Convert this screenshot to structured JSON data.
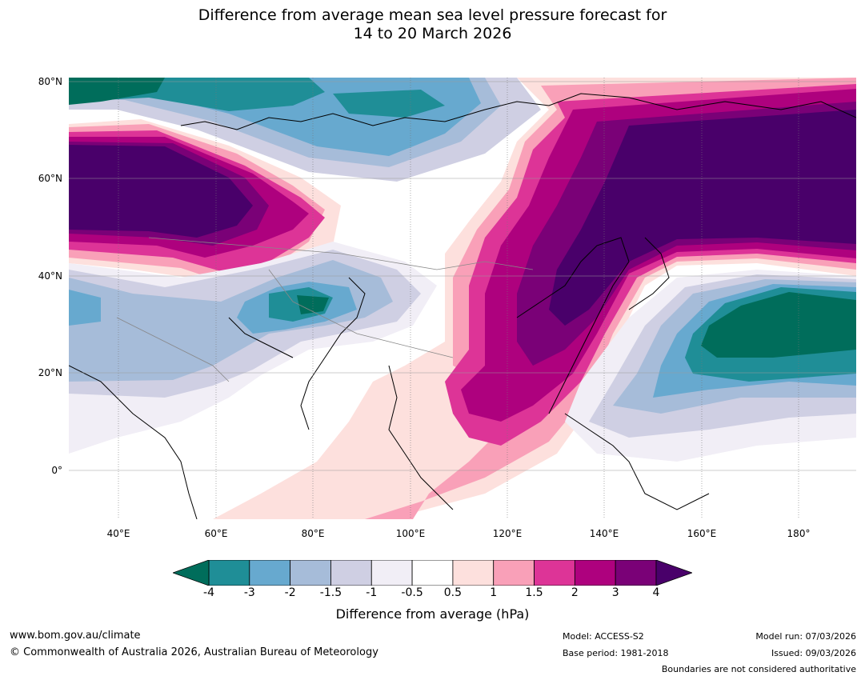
{
  "title": {
    "line1": "Difference from average mean sea level pressure forecast for",
    "line2": "14 to 20 March 2026"
  },
  "map": {
    "region": "Asia and western Pacific",
    "lat_labels": [
      "80°N",
      "60°N",
      "40°N",
      "20°N",
      "0°"
    ],
    "lon_labels": [
      "40°E",
      "60°E",
      "80°E",
      "100°E",
      "120°E",
      "140°E",
      "160°E",
      "180°"
    ],
    "anomaly_palette": {
      "lt_-4": "#006d5b",
      "-4_-3": "#1f8e97",
      "-3_-2": "#67a9cf",
      "-2_-1.5": "#a6bcd9",
      "-1.5_-1": "#cfcfe3",
      "-1_-0.5": "#f1eef6",
      "-0.5_0.5": "#ffffff",
      "0.5_1": "#fde0dd",
      "1_1.5": "#f9a0b8",
      "1.5_2": "#dd3497",
      "2_3": "#ae017e",
      "3_4": "#7a0177",
      "gt_4": "#49006a"
    }
  },
  "colorbar": {
    "ticks": [
      "-4",
      "-3",
      "-2",
      "-1.5",
      "-1",
      "-0.5",
      "0.5",
      "1",
      "1.5",
      "2",
      "3",
      "4"
    ],
    "colors": [
      "#1f8e97",
      "#67a9cf",
      "#a6bcd9",
      "#cfcfe3",
      "#f1eef6",
      "#ffffff",
      "#fde0dd",
      "#f9a0b8",
      "#dd3497",
      "#ae017e",
      "#7a0177"
    ],
    "low_extend_color": "#006d5b",
    "high_extend_color": "#49006a",
    "title": "Difference from average (hPa)"
  },
  "footer": {
    "website": "www.bom.gov.au/climate",
    "copyright": "© Commonwealth of Australia 2026, Australian Bureau of Meteorology",
    "model": "Model: ACCESS-S2",
    "base_period": "Base period: 1981-2018",
    "model_run": "Model run: 07/03/2026",
    "issued": "Issued: 09/03/2026",
    "disclaimer": "Boundaries are not considered authoritative"
  }
}
